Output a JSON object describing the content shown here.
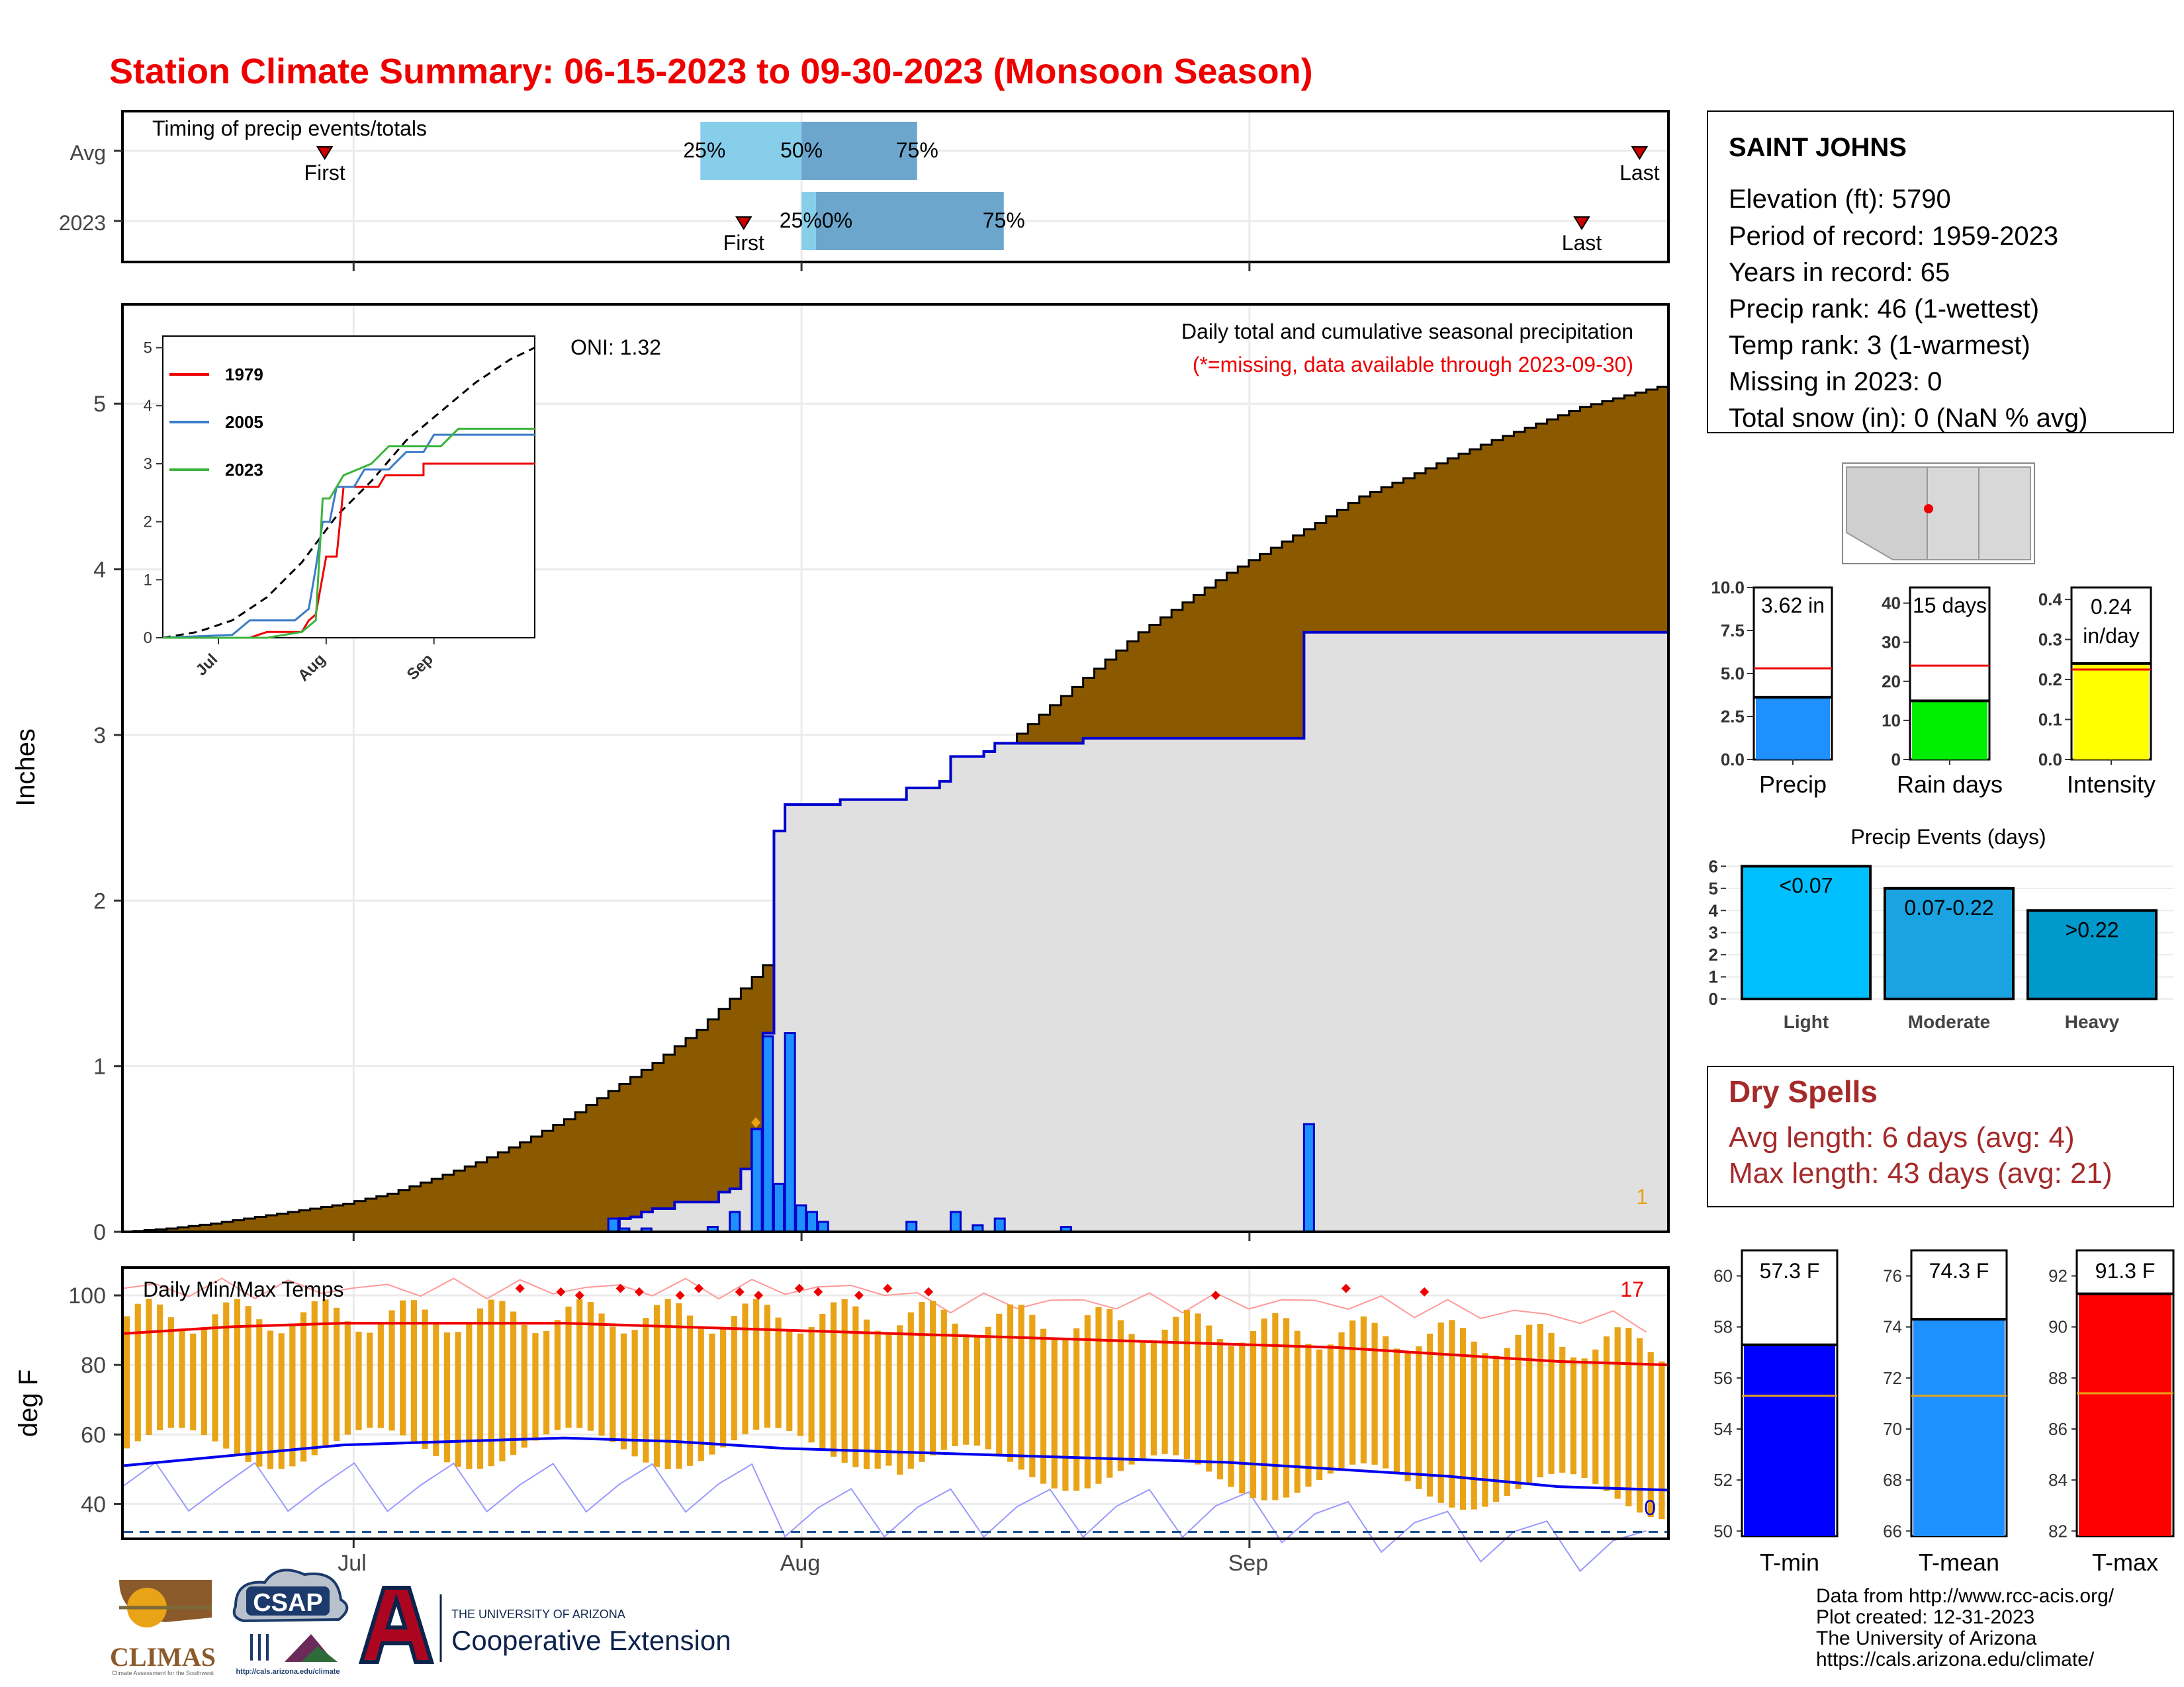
{
  "title": "Station Climate Summary: 06-15-2023 to 09-30-2023 (Monsoon Season)",
  "colors": {
    "title": "#ee0000",
    "brown": "#8b5a00",
    "grayfill": "#e0e0e0",
    "precip_bar": "#1e90ff",
    "tmin": "#0000ff",
    "tmean": "#1e90ff",
    "tmax": "#ff0000",
    "dry": "#a52a2a",
    "orange": "#e8a317",
    "light": "#00bfff",
    "moderate": "#1aa3e0",
    "heavy": "#0099cc"
  },
  "station": {
    "name": "SAINT JOHNS",
    "lines": [
      "Elevation (ft): 5790",
      "Period of record: 1959-2023",
      "Years in record: 65",
      "Precip rank: 46 (1-wettest)",
      "Temp rank: 3 (1-warmest)",
      "Missing in 2023: 0",
      "Total snow (in): 0 (NaN % avg)"
    ]
  },
  "timing": {
    "label": "Timing of precip events/totals",
    "rows": [
      "Avg",
      "2023"
    ],
    "avg": {
      "first": "Jun-29",
      "p25": "Jul-25",
      "p50": "Aug-01",
      "p75": "Aug-09",
      "last": "Sep-28"
    },
    "y2023": {
      "first": "Jul-28",
      "p25": "Aug-01",
      "p50": "Aug-02",
      "p75": "Aug-15",
      "last": "Sep-24"
    },
    "first_label": "First",
    "last_label": "Last",
    "p25_label": "25%",
    "p50_label": "50%",
    "p75_label": "75%",
    "overlap_label": "25%0%"
  },
  "precip": {
    "ylabel": "Inches",
    "note": "Daily total and cumulative seasonal precipitation",
    "missing_note": "(*=missing, data available through 2023-09-30)",
    "oni": "ONI: 1.32",
    "missing_count": "1",
    "inset_legend": [
      "1979",
      "2005",
      "2023"
    ]
  },
  "temps": {
    "label": "Daily Min/Max Temps",
    "ylabel": "deg F",
    "count_high": "17",
    "count_low": "0"
  },
  "month_ticks": [
    "Jul",
    "Aug",
    "Sep"
  ],
  "gauges": {
    "precip": {
      "value_label": "3.62 in",
      "label": "Precip",
      "ticks": [
        "10.0",
        "7.5",
        "5.0",
        "2.5",
        "0.0"
      ]
    },
    "raindays": {
      "value_label": "15 days",
      "label": "Rain days",
      "ticks": [
        "40",
        "30",
        "20",
        "10",
        "0"
      ]
    },
    "intensity": {
      "value_label1": "0.24",
      "value_label2": "in/day",
      "label": "Intensity",
      "ticks": [
        "0.4",
        "0.3",
        "0.2",
        "0.1",
        "0.0"
      ]
    }
  },
  "events": {
    "title": "Precip Events (days)",
    "bars": [
      {
        "name": "Light",
        "label": "<0.07",
        "value": 6
      },
      {
        "name": "Moderate",
        "label": "0.07-0.22",
        "value": 5
      },
      {
        "name": "Heavy",
        "label": ">0.22",
        "value": 4
      }
    ],
    "ticks": [
      "6",
      "5",
      "4",
      "3",
      "2",
      "1",
      "0"
    ]
  },
  "dry": {
    "title": "Dry Spells",
    "avg": "Avg length: 6 days (avg: 4)",
    "max": "Max length: 43 days (avg: 21)"
  },
  "tgauges": {
    "tmin": {
      "value_label": "57.3 F",
      "label": "T-min",
      "ticks": [
        "60",
        "58",
        "56",
        "54",
        "52",
        "50"
      ]
    },
    "tmean": {
      "value_label": "74.3 F",
      "label": "T-mean",
      "ticks": [
        "76",
        "74",
        "72",
        "70",
        "68",
        "66"
      ]
    },
    "tmax": {
      "value_label": "91.3 F",
      "label": "T-max",
      "ticks": [
        "92",
        "90",
        "88",
        "86",
        "84",
        "82"
      ]
    }
  },
  "footer": {
    "lines": [
      "Data from http://www.rcc-acis.org/",
      "Plot created: 12-31-2023",
      "The University of Arizona",
      "https://cals.arizona.edu/climate/"
    ],
    "logo_climas": "CLIMAS",
    "logo_climas_sub": "Climate Assessment for the Southwest",
    "logo_csap": "CSAP",
    "logo_csap_sub": "http://cals.arizona.edu/climate",
    "logo_ua_small": "THE UNIVERSITY OF ARIZONA",
    "logo_ua_big": "Cooperative Extension"
  },
  "chart_data": [
    {
      "type": "area",
      "title": "Daily total and cumulative seasonal precipitation",
      "ylabel": "Inches",
      "xlabel": "",
      "x_range": [
        "2023-06-15",
        "2023-09-30"
      ],
      "ylim": [
        0,
        5.6
      ],
      "avg_cumulative": [
        [
          0,
          0
        ],
        [
          4,
          0.02
        ],
        [
          8,
          0.05
        ],
        [
          12,
          0.09
        ],
        [
          16,
          0.13
        ],
        [
          20,
          0.17
        ],
        [
          24,
          0.23
        ],
        [
          28,
          0.32
        ],
        [
          32,
          0.42
        ],
        [
          36,
          0.54
        ],
        [
          40,
          0.68
        ],
        [
          44,
          0.85
        ],
        [
          48,
          1.02
        ],
        [
          52,
          1.22
        ],
        [
          56,
          1.47
        ],
        [
          60,
          1.75
        ],
        [
          64,
          2.02
        ],
        [
          68,
          2.28
        ],
        [
          72,
          2.52
        ],
        [
          76,
          2.72
        ],
        [
          80,
          2.95
        ],
        [
          84,
          3.18
        ],
        [
          88,
          3.4
        ],
        [
          92,
          3.62
        ],
        [
          96,
          3.8
        ],
        [
          100,
          3.98
        ],
        [
          104,
          4.13
        ],
        [
          108,
          4.28
        ],
        [
          112,
          4.44
        ],
        [
          116,
          4.55
        ],
        [
          120,
          4.67
        ],
        [
          124,
          4.78
        ],
        [
          128,
          4.88
        ],
        [
          132,
          4.98
        ],
        [
          136,
          5.05
        ],
        [
          140,
          5.12
        ]
      ],
      "obs_cumulative": [
        [
          0,
          0
        ],
        [
          44,
          0
        ],
        [
          45,
          0.08
        ],
        [
          46,
          0.09
        ],
        [
          47,
          0.12
        ],
        [
          48,
          0.14
        ],
        [
          50,
          0.18
        ],
        [
          54,
          0.24
        ],
        [
          55,
          0.26
        ],
        [
          56,
          0.38
        ],
        [
          57,
          0.62
        ],
        [
          58,
          1.2
        ],
        [
          59,
          2.42
        ],
        [
          60,
          2.58
        ],
        [
          64,
          2.58
        ],
        [
          65,
          2.61
        ],
        [
          70,
          2.61
        ],
        [
          71,
          2.68
        ],
        [
          74,
          2.72
        ],
        [
          75,
          2.87
        ],
        [
          78,
          2.9
        ],
        [
          79,
          2.95
        ],
        [
          85,
          2.95
        ],
        [
          86,
          2.95
        ],
        [
          87,
          2.98
        ],
        [
          106,
          2.98
        ],
        [
          107,
          3.62
        ],
        [
          140,
          3.62
        ]
      ],
      "daily_bars": [
        [
          44,
          0.08
        ],
        [
          45,
          0.02
        ],
        [
          47,
          0.02
        ],
        [
          53,
          0.03
        ],
        [
          55,
          0.12
        ],
        [
          57,
          0.62
        ],
        [
          58,
          1.18
        ],
        [
          59,
          0.29
        ],
        [
          60,
          1.2
        ],
        [
          61,
          0.16
        ],
        [
          62,
          0.12
        ],
        [
          63,
          0.06
        ],
        [
          71,
          0.06
        ],
        [
          75,
          0.12
        ],
        [
          77,
          0.04
        ],
        [
          79,
          0.08
        ],
        [
          85,
          0.03
        ],
        [
          107,
          0.65
        ]
      ]
    },
    {
      "type": "line",
      "title": "Daily Min/Max Temps",
      "ylabel": "deg F",
      "ylim": [
        30,
        108
      ],
      "avg_max": [
        [
          0,
          89
        ],
        [
          10,
          91
        ],
        [
          20,
          92
        ],
        [
          30,
          92
        ],
        [
          40,
          92
        ],
        [
          50,
          91
        ],
        [
          60,
          90
        ],
        [
          70,
          89
        ],
        [
          80,
          88
        ],
        [
          90,
          87
        ],
        [
          100,
          86
        ],
        [
          110,
          85
        ],
        [
          120,
          83
        ],
        [
          130,
          81
        ],
        [
          140,
          80
        ]
      ],
      "avg_min": [
        [
          0,
          51
        ],
        [
          10,
          54
        ],
        [
          20,
          57
        ],
        [
          30,
          58
        ],
        [
          40,
          59
        ],
        [
          50,
          58
        ],
        [
          60,
          56
        ],
        [
          70,
          55
        ],
        [
          80,
          54
        ],
        [
          90,
          53
        ],
        [
          100,
          52
        ],
        [
          110,
          50
        ],
        [
          120,
          48
        ],
        [
          130,
          45
        ],
        [
          140,
          44
        ]
      ],
      "record_high_markers": 17,
      "record_low_markers": 0,
      "freezing_line": 32
    }
  ]
}
